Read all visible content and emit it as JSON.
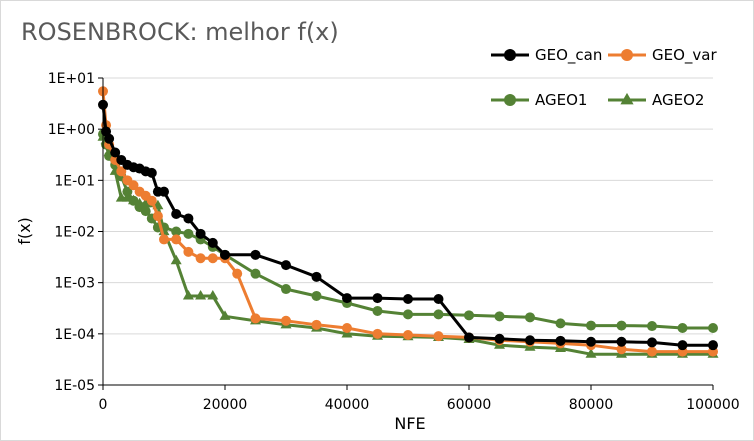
{
  "chart_data": {
    "type": "line",
    "title": "ROSENBROCK: melhor f(x)",
    "xlabel": "NFE",
    "ylabel": "f(x)",
    "xlim": [
      0,
      100000
    ],
    "ylim": [
      1e-05,
      10
    ],
    "yscale": "log",
    "x_ticks": [
      0,
      20000,
      40000,
      60000,
      80000,
      100000
    ],
    "x_tick_labels": [
      "0",
      "20000",
      "40000",
      "60000",
      "80000",
      "100000"
    ],
    "y_ticks": [
      1e-05,
      0.0001,
      0.001,
      0.01,
      0.1,
      1,
      10
    ],
    "y_tick_labels": [
      "1E-05",
      "1E-04",
      "1E-03",
      "1E-02",
      "1E-01",
      "1E+00",
      "1E+01"
    ],
    "grid": "horizontal",
    "legend_position": "top-right",
    "series": [
      {
        "name": "GEO_can",
        "color": "#000000",
        "marker": "circle",
        "x": [
          0,
          500,
          1000,
          2000,
          3000,
          4000,
          5000,
          6000,
          7000,
          8000,
          9000,
          10000,
          12000,
          14000,
          16000,
          18000,
          20000,
          25000,
          30000,
          35000,
          40000,
          45000,
          50000,
          55000,
          60000,
          65000,
          70000,
          75000,
          80000,
          85000,
          90000,
          95000,
          100000
        ],
        "y": [
          3.0,
          0.9,
          0.65,
          0.35,
          0.25,
          0.2,
          0.18,
          0.17,
          0.15,
          0.14,
          0.06,
          0.06,
          0.022,
          0.018,
          0.009,
          0.006,
          0.0035,
          0.0035,
          0.0022,
          0.0013,
          0.0005,
          0.0005,
          0.00048,
          0.00048,
          8.5e-05,
          8e-05,
          7.5e-05,
          7.3e-05,
          7e-05,
          7e-05,
          6.8e-05,
          6e-05,
          6e-05
        ]
      },
      {
        "name": "GEO_var",
        "color": "#ed7d31",
        "marker": "circle",
        "x": [
          0,
          500,
          1000,
          2000,
          3000,
          4000,
          5000,
          6000,
          7000,
          8000,
          9000,
          10000,
          12000,
          14000,
          16000,
          18000,
          20000,
          22000,
          25000,
          30000,
          35000,
          40000,
          45000,
          50000,
          55000,
          60000,
          65000,
          70000,
          75000,
          80000,
          85000,
          90000,
          95000,
          100000
        ],
        "y": [
          5.5,
          1.2,
          0.5,
          0.25,
          0.15,
          0.1,
          0.08,
          0.06,
          0.05,
          0.04,
          0.02,
          0.007,
          0.007,
          0.004,
          0.003,
          0.003,
          0.003,
          0.0015,
          0.0002,
          0.00018,
          0.00015,
          0.00013,
          0.0001,
          9.5e-05,
          9e-05,
          8.5e-05,
          7.5e-05,
          7e-05,
          6.5e-05,
          6e-05,
          5e-05,
          4.5e-05,
          4.5e-05,
          4.5e-05
        ]
      },
      {
        "name": "AGEO1",
        "color": "#548235",
        "marker": "circle",
        "x": [
          0,
          500,
          1000,
          2000,
          3000,
          4000,
          5000,
          6000,
          7000,
          8000,
          9000,
          10000,
          12000,
          14000,
          16000,
          18000,
          20000,
          25000,
          30000,
          35000,
          40000,
          45000,
          50000,
          55000,
          60000,
          65000,
          70000,
          75000,
          80000,
          85000,
          90000,
          95000,
          100000
        ],
        "y": [
          0.8,
          0.5,
          0.3,
          0.2,
          0.12,
          0.06,
          0.04,
          0.03,
          0.025,
          0.018,
          0.012,
          0.012,
          0.01,
          0.009,
          0.007,
          0.005,
          0.0035,
          0.0015,
          0.00075,
          0.00055,
          0.0004,
          0.00028,
          0.00024,
          0.00024,
          0.00023,
          0.00022,
          0.00021,
          0.00016,
          0.000145,
          0.000145,
          0.000142,
          0.00013,
          0.00013
        ]
      },
      {
        "name": "AGEO2",
        "color": "#548235",
        "marker": "triangle",
        "x": [
          0,
          500,
          1000,
          2000,
          3000,
          4000,
          5000,
          6000,
          7000,
          8000,
          9000,
          10000,
          12000,
          14000,
          16000,
          18000,
          20000,
          25000,
          30000,
          35000,
          40000,
          45000,
          50000,
          55000,
          60000,
          65000,
          70000,
          75000,
          80000,
          85000,
          90000,
          95000,
          100000
        ],
        "y": [
          0.7,
          0.6,
          0.35,
          0.15,
          0.045,
          0.045,
          0.04,
          0.035,
          0.035,
          0.035,
          0.032,
          0.01,
          0.0027,
          0.00055,
          0.00055,
          0.00055,
          0.00022,
          0.00018,
          0.00015,
          0.00013,
          0.0001,
          9e-05,
          8.8e-05,
          8.5e-05,
          7.8e-05,
          6e-05,
          5.5e-05,
          5.2e-05,
          4e-05,
          4e-05,
          4e-05,
          4e-05,
          4e-05
        ]
      }
    ]
  }
}
